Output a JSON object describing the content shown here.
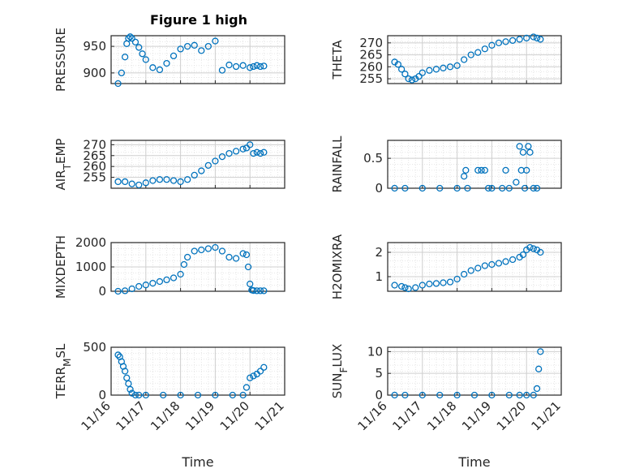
{
  "figure": {
    "title": "Figure 1 high",
    "marker_color": "#0072bd",
    "axis_color": "#262626",
    "grid_color": "#dfdfdf"
  },
  "chart_data": [
    {
      "type": "scatter",
      "ylabel": "PRESSURE",
      "xlim": [
        0,
        5
      ],
      "ylim": [
        880,
        970
      ],
      "yticks": [
        900,
        950
      ],
      "ytick_labels": [
        "900",
        "950"
      ],
      "xticks_shown": false,
      "x": [
        0.2,
        0.3,
        0.4,
        0.45,
        0.5,
        0.55,
        0.6,
        0.7,
        0.8,
        0.9,
        1.0,
        1.2,
        1.4,
        1.6,
        1.8,
        2.0,
        2.2,
        2.4,
        2.6,
        2.8,
        3.0,
        3.2,
        3.4,
        3.6,
        3.8,
        4.0,
        4.1,
        4.2,
        4.3,
        4.4
      ],
      "y": [
        880,
        900,
        930,
        955,
        965,
        968,
        965,
        958,
        948,
        936,
        925,
        910,
        906,
        918,
        932,
        945,
        950,
        952,
        942,
        950,
        960,
        905,
        915,
        912,
        914,
        910,
        912,
        914,
        912,
        913
      ]
    },
    {
      "type": "scatter",
      "ylabel": "THETA",
      "xlim": [
        0,
        5
      ],
      "ylim": [
        253,
        273
      ],
      "yticks": [
        255,
        260,
        265,
        270
      ],
      "ytick_labels": [
        "255",
        "260",
        "265",
        "270"
      ],
      "xticks_shown": false,
      "x": [
        0.2,
        0.3,
        0.4,
        0.5,
        0.6,
        0.7,
        0.8,
        0.9,
        1.0,
        1.2,
        1.4,
        1.6,
        1.8,
        2.0,
        2.2,
        2.4,
        2.6,
        2.8,
        3.0,
        3.2,
        3.4,
        3.6,
        3.8,
        4.0,
        4.2,
        4.3,
        4.4
      ],
      "y": [
        262,
        261,
        259,
        257,
        255,
        254.5,
        255,
        256,
        257.5,
        258.5,
        259,
        259.5,
        260,
        260.5,
        263,
        265,
        266,
        267.5,
        269,
        270,
        270.5,
        271,
        271.5,
        272,
        272.5,
        272,
        271.5
      ]
    },
    {
      "type": "scatter",
      "ylabel": "AIR_TEMP",
      "xlim": [
        0,
        5
      ],
      "ylim": [
        250,
        272
      ],
      "yticks": [
        255,
        260,
        265,
        270
      ],
      "ytick_labels": [
        "255",
        "260",
        "265",
        "270"
      ],
      "xticks_shown": false,
      "x": [
        0.2,
        0.4,
        0.6,
        0.8,
        1.0,
        1.2,
        1.4,
        1.6,
        1.8,
        2.0,
        2.2,
        2.4,
        2.6,
        2.8,
        3.0,
        3.2,
        3.4,
        3.6,
        3.8,
        3.9,
        4.0,
        4.1,
        4.2,
        4.3,
        4.4
      ],
      "y": [
        253,
        253,
        252,
        251.5,
        252.5,
        253.5,
        254,
        254,
        253.5,
        253,
        254,
        256,
        258,
        260.5,
        262.5,
        264.5,
        266,
        267,
        268,
        268.5,
        270,
        266,
        266.5,
        266,
        266.5
      ]
    },
    {
      "type": "scatter",
      "ylabel": "RAINFALL",
      "xlim": [
        0,
        5
      ],
      "ylim": [
        0,
        0.8
      ],
      "yticks": [
        0,
        0.5
      ],
      "ytick_labels": [
        "0",
        "0.5"
      ],
      "xticks_shown": false,
      "x": [
        0.2,
        0.5,
        1.0,
        1.5,
        2.0,
        2.2,
        2.25,
        2.3,
        2.6,
        2.7,
        2.8,
        2.9,
        3.0,
        3.3,
        3.4,
        3.5,
        3.7,
        3.8,
        3.85,
        3.9,
        3.95,
        4.0,
        4.05,
        4.1,
        4.2,
        4.3
      ],
      "y": [
        0,
        0,
        0,
        0,
        0,
        0.2,
        0.3,
        0,
        0.3,
        0.3,
        0.3,
        0,
        0,
        0,
        0.3,
        0,
        0.1,
        0.7,
        0.3,
        0.6,
        0,
        0.3,
        0.7,
        0.6,
        0,
        0
      ]
    },
    {
      "type": "scatter",
      "ylabel": "MIXDEPTH",
      "xlim": [
        0,
        5
      ],
      "ylim": [
        0,
        2000
      ],
      "yticks": [
        0,
        1000,
        2000
      ],
      "ytick_labels": [
        "0",
        "1000",
        "2000"
      ],
      "xticks_shown": false,
      "x": [
        0.2,
        0.4,
        0.6,
        0.8,
        1.0,
        1.2,
        1.4,
        1.6,
        1.8,
        2.0,
        2.1,
        2.2,
        2.4,
        2.6,
        2.8,
        3.0,
        3.2,
        3.4,
        3.6,
        3.8,
        3.9,
        3.95,
        4.0,
        4.05,
        4.1,
        4.2,
        4.3,
        4.4
      ],
      "y": [
        0,
        20,
        100,
        200,
        260,
        330,
        400,
        470,
        550,
        700,
        1100,
        1400,
        1650,
        1700,
        1750,
        1800,
        1650,
        1400,
        1350,
        1550,
        1500,
        1000,
        300,
        50,
        30,
        20,
        20,
        20
      ]
    },
    {
      "type": "scatter",
      "ylabel": "H2OMIXRA",
      "xlim": [
        0,
        5
      ],
      "ylim": [
        0.4,
        2.4
      ],
      "yticks": [
        1,
        2
      ],
      "ytick_labels": [
        "1",
        "2"
      ],
      "xticks_shown": false,
      "x": [
        0.2,
        0.4,
        0.5,
        0.6,
        0.8,
        1.0,
        1.2,
        1.4,
        1.6,
        1.8,
        2.0,
        2.2,
        2.4,
        2.6,
        2.8,
        3.0,
        3.2,
        3.4,
        3.6,
        3.8,
        3.9,
        4.0,
        4.1,
        4.2,
        4.3,
        4.4
      ],
      "y": [
        0.65,
        0.6,
        0.55,
        0.5,
        0.55,
        0.65,
        0.7,
        0.72,
        0.75,
        0.78,
        0.9,
        1.1,
        1.25,
        1.35,
        1.45,
        1.5,
        1.55,
        1.62,
        1.7,
        1.8,
        1.9,
        2.1,
        2.2,
        2.15,
        2.1,
        2.0
      ]
    },
    {
      "type": "scatter",
      "ylabel": "TERR_MSL",
      "xlim": [
        0,
        5
      ],
      "ylim": [
        0,
        500
      ],
      "yticks": [
        0,
        500
      ],
      "ytick_labels": [
        "0",
        "500"
      ],
      "xticks_shown": true,
      "xticks": [
        0,
        1,
        2,
        3,
        4,
        5
      ],
      "xtick_labels": [
        "11/16",
        "11/17",
        "11/18",
        "11/19",
        "11/20",
        "11/21"
      ],
      "xlabel": "Time",
      "x": [
        0.2,
        0.25,
        0.3,
        0.35,
        0.4,
        0.45,
        0.5,
        0.55,
        0.6,
        0.7,
        0.8,
        1.0,
        1.5,
        2.0,
        2.5,
        3.0,
        3.5,
        3.8,
        3.9,
        4.0,
        4.1,
        4.2,
        4.3,
        4.4
      ],
      "y": [
        420,
        400,
        350,
        300,
        250,
        180,
        120,
        60,
        20,
        0,
        0,
        0,
        0,
        0,
        0,
        0,
        0,
        0,
        80,
        180,
        200,
        220,
        250,
        290
      ]
    },
    {
      "type": "scatter",
      "ylabel": "SUN_FLUX",
      "xlim": [
        0,
        5
      ],
      "ylim": [
        0,
        11
      ],
      "yticks": [
        0,
        5,
        10
      ],
      "ytick_labels": [
        "0",
        "5",
        "10"
      ],
      "xticks_shown": true,
      "xticks": [
        0,
        1,
        2,
        3,
        4,
        5
      ],
      "xtick_labels": [
        "11/16",
        "11/17",
        "11/18",
        "11/19",
        "11/20",
        "11/21"
      ],
      "xlabel": "Time",
      "x": [
        0.2,
        0.5,
        1.0,
        1.5,
        2.0,
        2.5,
        3.0,
        3.5,
        3.8,
        4.0,
        4.2,
        4.3,
        4.35,
        4.4
      ],
      "y": [
        0,
        0,
        0,
        0,
        0,
        0,
        0,
        0,
        0,
        0,
        0,
        1.5,
        6,
        10
      ]
    }
  ]
}
